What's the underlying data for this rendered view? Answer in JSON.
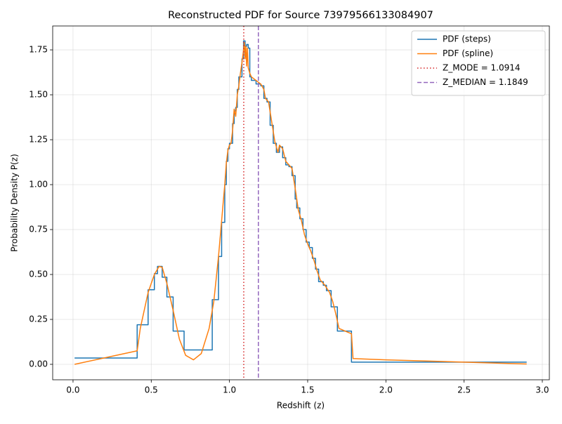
{
  "chart_data": {
    "type": "line",
    "title": "Reconstructed PDF for Source 73979566133084907",
    "x_label": "Redshift (z)",
    "y_label": "Probability Density P(z)",
    "xlim": [
      -0.13,
      3.045
    ],
    "ylim": [
      -0.086,
      1.883
    ],
    "xticks": [
      {
        "value": 0,
        "label": "0.0"
      },
      0.5,
      {
        "value": 1,
        "label": "1.0"
      },
      1.5,
      {
        "value": 2,
        "label": "2.0"
      },
      2.5,
      {
        "value": 3,
        "label": "3.0"
      }
    ],
    "yticks": [
      {
        "value": 0,
        "label": "0.00"
      },
      0.25,
      {
        "value": 0.5,
        "label": "0.50"
      },
      0.75,
      {
        "value": 1,
        "label": "1.00"
      },
      1.25,
      {
        "value": 1.5,
        "label": "1.50"
      },
      1.75
    ],
    "grid": true,
    "legend": "upper right",
    "series": [
      {
        "name": "PDF (steps)",
        "color": "#1f77b4",
        "step": true,
        "x": [
          0.01,
          0.41,
          0.48,
          0.52,
          0.54,
          0.57,
          0.6,
          0.64,
          0.71,
          0.89,
          0.93,
          0.95,
          0.97,
          0.98,
          0.99,
          1.0,
          1.02,
          1.03,
          1.04,
          1.05,
          1.06,
          1.08,
          1.09,
          1.1,
          1.11,
          1.12,
          1.13,
          1.14,
          1.17,
          1.2,
          1.22,
          1.24,
          1.26,
          1.28,
          1.3,
          1.32,
          1.34,
          1.36,
          1.38,
          1.4,
          1.42,
          1.43,
          1.45,
          1.47,
          1.49,
          1.51,
          1.53,
          1.55,
          1.57,
          1.6,
          1.62,
          1.65,
          1.69,
          1.78,
          2.9
        ],
        "values": [
          0.035,
          0.22,
          0.415,
          0.505,
          0.545,
          0.485,
          0.375,
          0.185,
          0.08,
          0.36,
          0.6,
          0.79,
          1.0,
          1.13,
          1.2,
          1.23,
          1.34,
          1.41,
          1.43,
          1.53,
          1.6,
          1.7,
          1.8,
          1.77,
          1.78,
          1.76,
          1.6,
          1.58,
          1.56,
          1.55,
          1.48,
          1.46,
          1.33,
          1.23,
          1.18,
          1.21,
          1.15,
          1.11,
          1.1,
          1.05,
          0.92,
          0.87,
          0.81,
          0.75,
          0.68,
          0.65,
          0.59,
          0.53,
          0.46,
          0.44,
          0.41,
          0.32,
          0.185,
          0.012,
          0.012
        ]
      },
      {
        "name": "PDF (spline)",
        "color": "#ff7f0e",
        "x": [
          0.01,
          0.41,
          0.43,
          0.48,
          0.52,
          0.55,
          0.57,
          0.6,
          0.64,
          0.68,
          0.72,
          0.77,
          0.82,
          0.87,
          0.9,
          0.93,
          0.95,
          0.97,
          0.98,
          0.99,
          1.0,
          1.01,
          1.02,
          1.03,
          1.04,
          1.05,
          1.06,
          1.07,
          1.08,
          1.09,
          1.095,
          1.1,
          1.105,
          1.11,
          1.115,
          1.12,
          1.13,
          1.14,
          1.17,
          1.2,
          1.22,
          1.23,
          1.25,
          1.27,
          1.29,
          1.31,
          1.32,
          1.34,
          1.36,
          1.4,
          1.42,
          1.44,
          1.46,
          1.48,
          1.5,
          1.52,
          1.54,
          1.56,
          1.58,
          1.61,
          1.64,
          1.66,
          1.68,
          1.7,
          1.74,
          1.78,
          1.79,
          2.0,
          2.5,
          2.9
        ],
        "values": [
          0,
          0.075,
          0.2,
          0.4,
          0.5,
          0.545,
          0.54,
          0.45,
          0.3,
          0.14,
          0.05,
          0.025,
          0.06,
          0.2,
          0.35,
          0.6,
          0.8,
          1.0,
          1.12,
          1.19,
          1.22,
          1.23,
          1.3,
          1.42,
          1.38,
          1.5,
          1.55,
          1.62,
          1.68,
          1.75,
          1.79,
          1.7,
          1.77,
          1.66,
          1.76,
          1.65,
          1.62,
          1.6,
          1.58,
          1.56,
          1.53,
          1.48,
          1.46,
          1.35,
          1.24,
          1.18,
          1.22,
          1.2,
          1.13,
          1.09,
          0.98,
          0.86,
          0.8,
          0.72,
          0.67,
          0.63,
          0.58,
          0.52,
          0.47,
          0.44,
          0.4,
          0.35,
          0.28,
          0.2,
          0.185,
          0.17,
          0.032,
          0.025,
          0.012,
          0.002
        ]
      }
    ],
    "vlines": [
      {
        "name": "Z_MODE = 1.0914",
        "x": 1.0914,
        "color": "#d62728",
        "dash": "1.5,3"
      },
      {
        "name": "Z_MEDIAN = 1.1849",
        "x": 1.1849,
        "color": "#9467bd",
        "dash": "6,3"
      }
    ]
  }
}
